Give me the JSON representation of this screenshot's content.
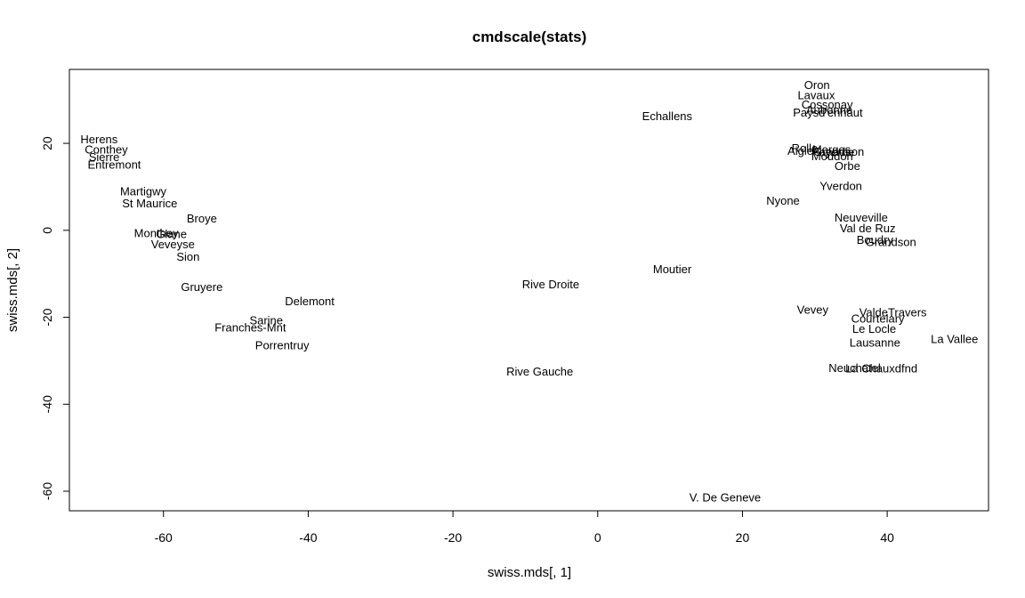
{
  "chart_data": {
    "type": "scatter",
    "title": "cmdscale(stats)",
    "xlabel": "swiss.mds[, 1]",
    "ylabel": "swiss.mds[, 2]",
    "xlim": [
      -73,
      54
    ],
    "ylim": [
      -64.5,
      37
    ],
    "xticks": [
      -60,
      -40,
      -20,
      0,
      20,
      40
    ],
    "yticks": [
      -60,
      -40,
      -20,
      0,
      20
    ],
    "grid": false,
    "legend": "none",
    "points": [
      {
        "label": "Herens",
        "x": -68.9,
        "y": 21.0
      },
      {
        "label": "Conthey",
        "x": -67.9,
        "y": 18.7
      },
      {
        "label": "Sierre",
        "x": -68.2,
        "y": 16.9
      },
      {
        "label": "Entremont",
        "x": -66.8,
        "y": 15.2
      },
      {
        "label": "Martigwy",
        "x": -62.8,
        "y": 9.1
      },
      {
        "label": "St Maurice",
        "x": -61.9,
        "y": 6.3
      },
      {
        "label": "Broye",
        "x": -54.7,
        "y": 2.8
      },
      {
        "label": "Monthey",
        "x": -61.0,
        "y": -0.6
      },
      {
        "label": "Glane",
        "x": -58.9,
        "y": -0.8
      },
      {
        "label": "Veveyse",
        "x": -58.7,
        "y": -3.1
      },
      {
        "label": "Sion",
        "x": -56.6,
        "y": -6.0
      },
      {
        "label": "Gruyere",
        "x": -54.7,
        "y": -12.9
      },
      {
        "label": "Delemont",
        "x": -39.8,
        "y": -16.2
      },
      {
        "label": "Sarine",
        "x": -45.8,
        "y": -20.6
      },
      {
        "label": "Franches-Mnt",
        "x": -48.0,
        "y": -22.2
      },
      {
        "label": "Porrentruy",
        "x": -43.6,
        "y": -26.3
      },
      {
        "label": "Rive Droite",
        "x": -6.5,
        "y": -12.3
      },
      {
        "label": "Rive Gauche",
        "x": -8.0,
        "y": -32.4
      },
      {
        "label": "Echallens",
        "x": 9.6,
        "y": 26.4
      },
      {
        "label": "Moutier",
        "x": 10.3,
        "y": -8.8
      },
      {
        "label": "V. De Geneve",
        "x": 17.6,
        "y": -61.3
      },
      {
        "label": "Oron",
        "x": 30.3,
        "y": 33.5
      },
      {
        "label": "Lavaux",
        "x": 30.2,
        "y": 31.2
      },
      {
        "label": "Cossonay",
        "x": 31.7,
        "y": 29.0
      },
      {
        "label": "Aubonne",
        "x": 32.0,
        "y": 27.8
      },
      {
        "label": "Paysd'enhaut",
        "x": 31.8,
        "y": 27.2
      },
      {
        "label": "Rolle",
        "x": 28.6,
        "y": 19.0
      },
      {
        "label": "Aigle",
        "x": 28.0,
        "y": 18.4
      },
      {
        "label": "Morges",
        "x": 32.3,
        "y": 18.7
      },
      {
        "label": "Grandson",
        "x": 33.3,
        "y": 18.2
      },
      {
        "label": "Payerne",
        "x": 32.5,
        "y": 18.1
      },
      {
        "label": "Moudon",
        "x": 32.4,
        "y": 17.1
      },
      {
        "label": "Orbe",
        "x": 34.5,
        "y": 14.9
      },
      {
        "label": "Yverdon",
        "x": 33.6,
        "y": 10.3
      },
      {
        "label": "Nyone",
        "x": 25.6,
        "y": 6.9
      },
      {
        "label": "Neuveville",
        "x": 36.4,
        "y": 3.0
      },
      {
        "label": "Val de Ruz",
        "x": 37.3,
        "y": 0.6
      },
      {
        "label": "Boudry",
        "x": 38.3,
        "y": -2.1
      },
      {
        "label": "Grandson",
        "x": 40.5,
        "y": -2.6
      },
      {
        "label": "Vevey",
        "x": 29.7,
        "y": -18.2
      },
      {
        "label": "ValdeTravers",
        "x": 40.8,
        "y": -18.8
      },
      {
        "label": "Courtelary",
        "x": 38.7,
        "y": -20.2
      },
      {
        "label": "Le Locle",
        "x": 38.2,
        "y": -22.6
      },
      {
        "label": "Lausanne",
        "x": 38.3,
        "y": -25.7
      },
      {
        "label": "La Vallee",
        "x": 49.3,
        "y": -24.9
      },
      {
        "label": "Neuchatel",
        "x": 35.5,
        "y": -31.6
      },
      {
        "label": "La Chauxdfnd",
        "x": 39.2,
        "y": -31.7
      }
    ]
  }
}
